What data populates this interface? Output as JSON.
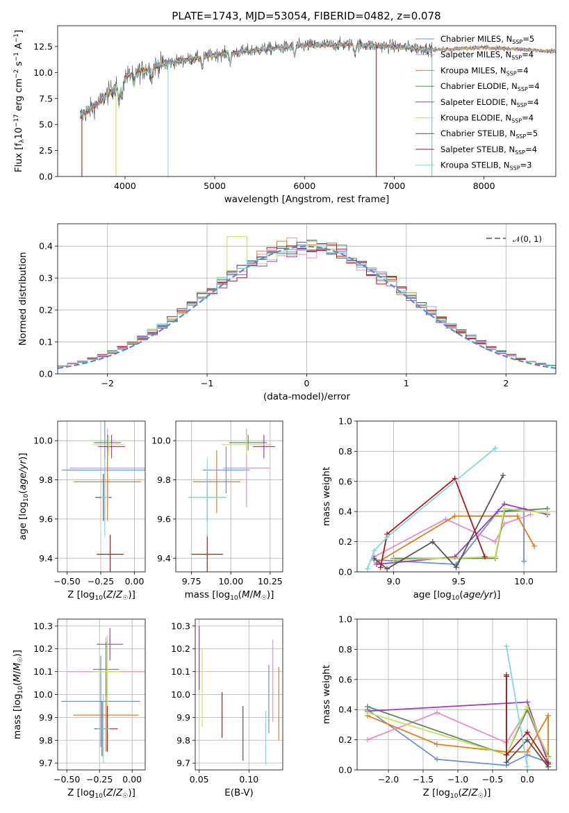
{
  "title": "PLATE=1743, MJD=53054, FIBERID=0482, z=0.078",
  "colors": {
    "chabrier_miles": "#6a8fdc",
    "salpeter_miles": "#e58fc9",
    "kroupa_miles": "#e47c1a",
    "chabrier_elodie": "#5a8a5a",
    "salpeter_elodie": "#9b3cb8",
    "kroupa_elodie": "#c8e05a",
    "chabrier_stelib": "#555555",
    "salpeter_stelib": "#b01818",
    "kroupa_stelib": "#7fd8e0",
    "normal": "#5b87d6",
    "grid": "#b0b0b0"
  },
  "chart_data": [
    {
      "id": "spectrum",
      "type": "line",
      "xlabel": "wavelength [Angstrom, rest frame]",
      "ylabel": "Flux [fλ10⁻¹⁷ erg cm⁻² s⁻¹ A⁻¹]",
      "xlim": [
        3250,
        8800
      ],
      "ylim": [
        0,
        14.5
      ],
      "xticks": [
        "4000",
        "5000",
        "6000",
        "7000",
        "8000"
      ],
      "yticks": [
        "0.0",
        "2.5",
        "5.0",
        "7.5",
        "10.0",
        "12.5"
      ],
      "legend_position": "upper-right",
      "legend": [
        {
          "model": "Chabrier MILES",
          "n": "5"
        },
        {
          "model": "Salpeter MILES",
          "n": "4"
        },
        {
          "model": "Kroupa MILES",
          "n": "4"
        },
        {
          "model": "Chabrier ELODIE",
          "n": "4"
        },
        {
          "model": "Salpeter ELODIE",
          "n": "4"
        },
        {
          "model": "Kroupa ELODIE",
          "n": "4"
        },
        {
          "model": "Chabrier STELIB",
          "n": "5"
        },
        {
          "model": "Salpeter STELIB",
          "n": "4"
        },
        {
          "model": "Kroupa STELIB",
          "n": "3"
        }
      ],
      "continuum": [
        [
          3500,
          5.8
        ],
        [
          3700,
          7.0
        ],
        [
          4000,
          9.6
        ],
        [
          4400,
          10.8
        ],
        [
          5000,
          11.7
        ],
        [
          5500,
          12.2
        ],
        [
          6000,
          12.6
        ],
        [
          6500,
          12.7
        ],
        [
          7000,
          12.5
        ],
        [
          7500,
          12.2
        ],
        [
          8000,
          12.4
        ],
        [
          8500,
          12.2
        ],
        [
          8800,
          12.0
        ]
      ]
    },
    {
      "id": "residuals",
      "type": "step",
      "xlabel": "(data-model)/error",
      "ylabel": "Normed distribution",
      "xlim": [
        -2.5,
        2.5
      ],
      "ylim": [
        0,
        0.47
      ],
      "xticks": [
        "−2",
        "−1",
        "0",
        "1",
        "2"
      ],
      "yticks": [
        "0.0",
        "0.1",
        "0.2",
        "0.3",
        "0.4"
      ],
      "legend": "𝒩(0, 1)",
      "grid": true
    },
    {
      "id": "z-age",
      "type": "errorbar",
      "xlabel": "Z [log10(Z/Z☉)]",
      "ylabel": "age  [log10(age/yr)]",
      "xlim": [
        -0.57,
        0.08
      ],
      "ylim": [
        9.33,
        10.1
      ],
      "xticks": [
        "−0.50",
        "−0.25",
        "0.00"
      ],
      "yticks": [
        "9.4",
        "9.6",
        "9.8",
        "10.0"
      ],
      "points": [
        {
          "m": "chabrier_miles",
          "x": -0.22,
          "y": 9.85,
          "xe": 0.32,
          "ye": 0.25
        },
        {
          "m": "salpeter_miles",
          "x": -0.2,
          "y": 9.86,
          "xe": 0.28,
          "ye": 0.2
        },
        {
          "m": "kroupa_miles",
          "x": -0.2,
          "y": 9.79,
          "xe": 0.25,
          "ye": 0.2
        },
        {
          "m": "chabrier_elodie",
          "x": -0.2,
          "y": 9.99,
          "xe": 0.1,
          "ye": 0.04
        },
        {
          "m": "salpeter_elodie",
          "x": -0.17,
          "y": 9.97,
          "xe": 0.1,
          "ye": 0.06
        },
        {
          "m": "kroupa_elodie",
          "x": -0.19,
          "y": 9.98,
          "xe": 0.12,
          "ye": 0.05
        },
        {
          "m": "chabrier_stelib",
          "x": -0.23,
          "y": 9.71,
          "xe": 0.06,
          "ye": 0.12
        },
        {
          "m": "salpeter_stelib",
          "x": -0.18,
          "y": 9.42,
          "xe": 0.1,
          "ye": 0.1
        },
        {
          "m": "kroupa_stelib",
          "x": -0.22,
          "y": 9.71,
          "xe": 0.03,
          "ye": 0.2
        }
      ]
    },
    {
      "id": "mass-age",
      "type": "errorbar",
      "xlabel": "mass [log10(M/M☉)]",
      "ylabel": "",
      "xlim": [
        9.65,
        10.33
      ],
      "ylim": [
        9.33,
        10.1
      ],
      "xticks": [
        "9.75",
        "10.00",
        "10.25"
      ],
      "yticks": [
        "9.4",
        "9.6",
        "9.8",
        "10.0"
      ],
      "points": [
        {
          "m": "chabrier_miles",
          "x": 9.97,
          "y": 9.85,
          "xe": 0.15,
          "ye": 0.12
        },
        {
          "m": "salpeter_miles",
          "x": 10.1,
          "y": 9.86,
          "xe": 0.15,
          "ye": 0.2
        },
        {
          "m": "kroupa_miles",
          "x": 9.91,
          "y": 9.79,
          "xe": 0.15,
          "ye": 0.16
        },
        {
          "m": "chabrier_elodie",
          "x": 10.11,
          "y": 9.99,
          "xe": 0.12,
          "ye": 0.04
        },
        {
          "m": "salpeter_elodie",
          "x": 10.21,
          "y": 9.97,
          "xe": 0.07,
          "ye": 0.06
        },
        {
          "m": "kroupa_elodie",
          "x": 10.1,
          "y": 9.98,
          "xe": 0.16,
          "ye": 0.05
        },
        {
          "m": "chabrier_stelib",
          "x": 9.85,
          "y": 9.71,
          "xe": 0.12,
          "ye": 0.12
        },
        {
          "m": "salpeter_stelib",
          "x": 9.85,
          "y": 9.42,
          "xe": 0.1,
          "ye": 0.1
        },
        {
          "m": "kroupa_stelib",
          "x": 9.85,
          "y": 9.71,
          "xe": 0.12,
          "ye": 0.2
        }
      ]
    },
    {
      "id": "age-weight",
      "type": "line",
      "xlabel": "age  [log10(age/yr)]",
      "ylabel": "mass weight",
      "xlim": [
        8.72,
        10.25
      ],
      "ylim": [
        0,
        1.0
      ],
      "xticks": [
        "9.0",
        "9.5",
        "10.0"
      ],
      "yticks": [
        "0.0",
        "0.2",
        "0.4",
        "0.6",
        "0.8",
        "1.0"
      ],
      "series": [
        {
          "m": "chabrier_miles",
          "points": [
            [
              8.85,
              0.08
            ],
            [
              9.48,
              0.05
            ],
            [
              9.8,
              0.4
            ],
            [
              10.0,
              0.42
            ],
            [
              10.0,
              0.07
            ]
          ]
        },
        {
          "m": "salpeter_miles",
          "points": [
            [
              8.85,
              0.1
            ],
            [
              9.4,
              0.35
            ],
            [
              9.78,
              0.2
            ],
            [
              9.85,
              0.32
            ],
            [
              10.05,
              0.38
            ]
          ]
        },
        {
          "m": "kroupa_miles",
          "points": [
            [
              8.87,
              0.06
            ],
            [
              9.47,
              0.37
            ],
            [
              9.95,
              0.37
            ],
            [
              10.08,
              0.17
            ]
          ]
        },
        {
          "m": "chabrier_elodie",
          "points": [
            [
              9.0,
              0.09
            ],
            [
              9.78,
              0.09
            ],
            [
              9.85,
              0.4
            ],
            [
              10.18,
              0.42
            ]
          ]
        },
        {
          "m": "salpeter_elodie",
          "points": [
            [
              8.87,
              0.05
            ],
            [
              9.47,
              0.1
            ],
            [
              9.85,
              0.45
            ],
            [
              10.18,
              0.38
            ]
          ]
        },
        {
          "m": "kroupa_elodie",
          "points": [
            [
              9.0,
              0.08
            ],
            [
              9.78,
              0.1
            ],
            [
              9.85,
              0.42
            ],
            [
              10.18,
              0.39
            ]
          ]
        },
        {
          "m": "chabrier_stelib",
          "points": [
            [
              8.85,
              0.09
            ],
            [
              8.95,
              0.02
            ],
            [
              9.3,
              0.2
            ],
            [
              9.48,
              0.03
            ],
            [
              9.84,
              0.64
            ]
          ]
        },
        {
          "m": "salpeter_stelib",
          "points": [
            [
              8.9,
              0.03
            ],
            [
              8.95,
              0.25
            ],
            [
              9.47,
              0.62
            ],
            [
              9.7,
              0.1
            ]
          ]
        },
        {
          "m": "kroupa_stelib",
          "points": [
            [
              8.8,
              0.02
            ],
            [
              8.85,
              0.14
            ],
            [
              8.95,
              0.23
            ],
            [
              9.78,
              0.82
            ]
          ]
        }
      ]
    },
    {
      "id": "z-mass",
      "type": "errorbar",
      "xlabel": "Z [log10(Z/Z☉)]",
      "ylabel": "mass [log10(M/M☉)]",
      "xlim": [
        -0.57,
        0.1
      ],
      "ylim": [
        9.67,
        10.33
      ],
      "xticks": [
        "−0.50",
        "−0.25",
        "0.00"
      ],
      "yticks": [
        "9.7",
        "9.8",
        "9.9",
        "10.0",
        "10.1",
        "10.2",
        "10.3"
      ],
      "points": [
        {
          "m": "chabrier_miles",
          "x": -0.24,
          "y": 9.97,
          "xe": 0.3,
          "ye": 0.2
        },
        {
          "m": "salpeter_miles",
          "x": -0.2,
          "y": 10.1,
          "xe": 0.3,
          "ye": 0.15
        },
        {
          "m": "kroupa_miles",
          "x": -0.2,
          "y": 9.91,
          "xe": 0.25,
          "ye": 0.16
        },
        {
          "m": "chabrier_elodie",
          "x": -0.2,
          "y": 10.11,
          "xe": 0.1,
          "ye": 0.12
        },
        {
          "m": "salpeter_elodie",
          "x": -0.17,
          "y": 10.22,
          "xe": 0.1,
          "ye": 0.07
        },
        {
          "m": "kroupa_elodie",
          "x": -0.19,
          "y": 10.1,
          "xe": 0.1,
          "ye": 0.16
        },
        {
          "m": "chabrier_stelib",
          "x": -0.23,
          "y": 9.85,
          "xe": 0.06,
          "ye": 0.12
        },
        {
          "m": "salpeter_stelib",
          "x": -0.19,
          "y": 9.85,
          "xe": 0.08,
          "ye": 0.1
        },
        {
          "m": "kroupa_stelib",
          "x": -0.22,
          "y": 9.85,
          "xe": 0.05,
          "ye": 0.15
        }
      ]
    },
    {
      "id": "ebv-mass",
      "type": "errorbar",
      "xlabel": "E(B-V)",
      "ylabel": "",
      "xlim": [
        0.046,
        0.134
      ],
      "ylim": [
        9.67,
        10.33
      ],
      "xticks": [
        "0.05",
        "0.10"
      ],
      "yticks": [
        "9.7",
        "9.8",
        "9.9",
        "10.0",
        "10.1",
        "10.2",
        "10.3"
      ],
      "points": [
        {
          "m": "salpeter_elodie",
          "x": 0.05,
          "y": 10.16,
          "xe": 0,
          "ye": 0.14
        },
        {
          "m": "kroupa_elodie",
          "x": 0.053,
          "y": 10.03,
          "xe": 0,
          "ye": 0.17
        },
        {
          "m": "salpeter_stelib",
          "x": 0.073,
          "y": 9.91,
          "xe": 0,
          "ye": 0.1
        },
        {
          "m": "chabrier_stelib",
          "x": 0.094,
          "y": 9.83,
          "xe": 0,
          "ye": 0.12
        },
        {
          "m": "kroupa_stelib",
          "x": 0.117,
          "y": 9.81,
          "xe": 0,
          "ye": 0.12
        },
        {
          "m": "chabrier_miles",
          "x": 0.12,
          "y": 9.98,
          "xe": 0,
          "ye": 0.15
        },
        {
          "m": "salpeter_miles",
          "x": 0.124,
          "y": 10.06,
          "xe": 0,
          "ye": 0.18
        },
        {
          "m": "kroupa_miles",
          "x": 0.13,
          "y": 9.96,
          "xe": 0,
          "ye": 0.16
        }
      ]
    },
    {
      "id": "z-weight",
      "type": "line",
      "xlabel": "Z [log10(Z/Z☉)]",
      "ylabel": "mass weight",
      "xlim": [
        -2.45,
        0.42
      ],
      "ylim": [
        0,
        1.0
      ],
      "xticks": [
        "−2.0",
        "−1.5",
        "−1.0",
        "−0.5",
        "0.0"
      ],
      "yticks": [
        "0.0",
        "0.2",
        "0.4",
        "0.6",
        "0.8",
        "1.0"
      ],
      "series": [
        {
          "m": "chabrier_miles",
          "points": [
            [
              -2.3,
              0.4
            ],
            [
              -1.3,
              0.07
            ],
            [
              -0.3,
              0.03
            ],
            [
              0.0,
              0.1
            ],
            [
              0.3,
              0.05
            ]
          ]
        },
        {
          "m": "salpeter_miles",
          "points": [
            [
              -2.3,
              0.2
            ],
            [
              -1.3,
              0.38
            ],
            [
              -0.3,
              0.18
            ],
            [
              0.0,
              0.4
            ],
            [
              0.3,
              0.05
            ]
          ]
        },
        {
          "m": "kroupa_miles",
          "points": [
            [
              -2.3,
              0.36
            ],
            [
              -1.3,
              0.17
            ],
            [
              -0.3,
              0.12
            ],
            [
              0.0,
              0.12
            ],
            [
              0.3,
              0.36
            ],
            [
              0.3,
              0.05
            ]
          ]
        },
        {
          "m": "chabrier_elodie",
          "points": [
            [
              -2.3,
              0.42
            ],
            [
              -0.3,
              0.1
            ],
            [
              0.0,
              0.4
            ],
            [
              0.3,
              0.09
            ]
          ]
        },
        {
          "m": "salpeter_elodie",
          "points": [
            [
              -2.3,
              0.39
            ],
            [
              0.0,
              0.45
            ],
            [
              0.3,
              0.05
            ]
          ]
        },
        {
          "m": "kroupa_elodie",
          "points": [
            [
              -2.3,
              0.38
            ],
            [
              -0.3,
              0.1
            ],
            [
              0.0,
              0.42
            ],
            [
              0.3,
              0.08
            ]
          ]
        },
        {
          "m": "chabrier_stelib",
          "points": [
            [
              -0.3,
              0.63
            ],
            [
              -0.3,
              0.05
            ],
            [
              0.0,
              0.2
            ],
            [
              0.3,
              0.02
            ]
          ]
        },
        {
          "m": "salpeter_stelib",
          "points": [
            [
              -0.3,
              0.62
            ],
            [
              -0.3,
              0.1
            ],
            [
              0.0,
              0.25
            ],
            [
              0.3,
              0.04
            ]
          ]
        },
        {
          "m": "kroupa_stelib",
          "points": [
            [
              -0.3,
              0.82
            ],
            [
              0.0,
              0.02
            ]
          ]
        }
      ]
    }
  ]
}
